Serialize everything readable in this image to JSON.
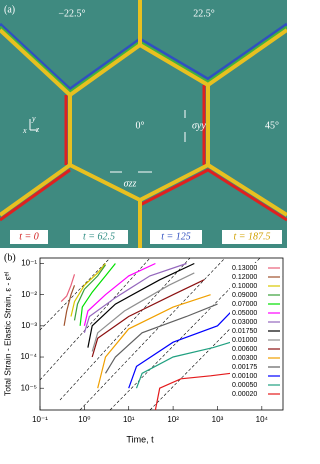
{
  "panel_a": {
    "label": "(a)",
    "angles": [
      "−22.5°",
      "22.5°",
      "0°",
      "45°"
    ],
    "stress_yy": "σyy",
    "stress_zz": "σzz",
    "axes": [
      "y",
      "x",
      "z"
    ],
    "times": [
      "t = 0",
      "t = 62.5",
      "t = 125",
      "t = 187.5"
    ]
  },
  "chart_data": {
    "type": "line",
    "label": "(b)",
    "xlabel": "Time, t",
    "ylabel": "Total Strain - Elastic Strain, ε - εᵉˡ",
    "xscale": "log",
    "yscale": "log",
    "xlim": [
      0.1,
      30000
    ],
    "ylim": [
      2e-06,
      0.15
    ],
    "xticks": [
      {
        "value": 0.1,
        "label": "10⁻¹"
      },
      {
        "value": 1,
        "label": "10⁰"
      },
      {
        "value": 10,
        "label": "10¹"
      },
      {
        "value": 100,
        "label": "10²"
      },
      {
        "value": 1000,
        "label": "10³"
      },
      {
        "value": 10000,
        "label": "10⁴"
      }
    ],
    "yticks": [
      {
        "value": 1e-05,
        "label": "10⁻⁵"
      },
      {
        "value": 0.0001,
        "label": "10⁻⁴"
      },
      {
        "value": 0.001,
        "label": "10⁻³"
      },
      {
        "value": 0.01,
        "label": "10⁻²"
      },
      {
        "value": 0.1,
        "label": "10⁻¹"
      }
    ],
    "series": [
      {
        "name": "0.13000",
        "color": "#e8607a",
        "x": [
          0.3,
          0.4,
          0.5,
          0.6
        ],
        "values": [
          0.006,
          0.009,
          0.02,
          0.045
        ]
      },
      {
        "name": "0.12000",
        "color": "#a0522d",
        "x": [
          0.35,
          0.4,
          0.5,
          0.6
        ],
        "values": [
          0.001,
          0.003,
          0.01,
          0.02
        ]
      },
      {
        "name": "0.10000",
        "color": "#d8c800",
        "x": [
          0.5,
          0.6,
          1,
          2,
          3
        ],
        "values": [
          0.002,
          0.006,
          0.02,
          0.05,
          0.1
        ]
      },
      {
        "name": "0.09000",
        "color": "#3aa03a",
        "x": [
          0.6,
          0.7,
          1,
          2,
          3
        ],
        "values": [
          0.0015,
          0.005,
          0.015,
          0.04,
          0.09
        ]
      },
      {
        "name": "0.07000",
        "color": "#00e000",
        "x": [
          0.8,
          0.9,
          1.5,
          3,
          5
        ],
        "values": [
          0.001,
          0.004,
          0.012,
          0.04,
          0.1
        ]
      },
      {
        "name": "0.05000",
        "color": "#ff00ff",
        "x": [
          1,
          1.2,
          3,
          10,
          40
        ],
        "values": [
          0.001,
          0.003,
          0.01,
          0.04,
          0.1
        ]
      },
      {
        "name": "0.03000",
        "color": "#9467bd",
        "x": [
          1,
          1.3,
          5,
          30,
          200
        ],
        "values": [
          0.0006,
          0.002,
          0.008,
          0.04,
          0.1
        ]
      },
      {
        "name": "0.01750",
        "color": "#000000",
        "x": [
          1.2,
          1.5,
          5,
          50,
          300
        ],
        "values": [
          0.0002,
          0.001,
          0.005,
          0.03,
          0.1
        ]
      },
      {
        "name": "0.01000",
        "color": "#909090",
        "x": [
          1.5,
          2,
          8,
          80,
          300
        ],
        "values": [
          0.00015,
          0.0006,
          0.003,
          0.02,
          0.05
        ]
      },
      {
        "name": "0.00600",
        "color": "#8b1010",
        "x": [
          1.5,
          2,
          10,
          100,
          500
        ],
        "values": [
          0.0001,
          0.0004,
          0.002,
          0.01,
          0.03
        ]
      },
      {
        "name": "0.00300",
        "color": "#f0a000",
        "x": [
          2,
          3,
          10,
          100,
          700
        ],
        "values": [
          1e-05,
          0.0001,
          0.0008,
          0.004,
          0.01
        ]
      },
      {
        "name": "0.00175",
        "color": "#606060",
        "x": [
          3,
          5,
          20,
          200,
          1000
        ],
        "values": [
          3e-05,
          0.0001,
          0.0006,
          0.002,
          0.005
        ]
      },
      {
        "name": "0.00100",
        "color": "#0000ff",
        "x": [
          10,
          15,
          100,
          1000,
          3000
        ],
        "values": [
          1e-05,
          5e-05,
          0.0003,
          0.001,
          0.005
        ]
      },
      {
        "name": "0.00050",
        "color": "#20a080",
        "x": [
          15,
          20,
          100,
          800,
          2000
        ],
        "values": [
          1e-05,
          3e-05,
          0.0001,
          0.0002,
          0.0003
        ]
      },
      {
        "name": "0.00020",
        "color": "#e41a1c",
        "x": [
          40,
          50,
          150,
          700,
          2000
        ],
        "values": [
          2e-06,
          1e-05,
          2e-05,
          2.5e-05,
          3e-05
        ]
      }
    ]
  }
}
